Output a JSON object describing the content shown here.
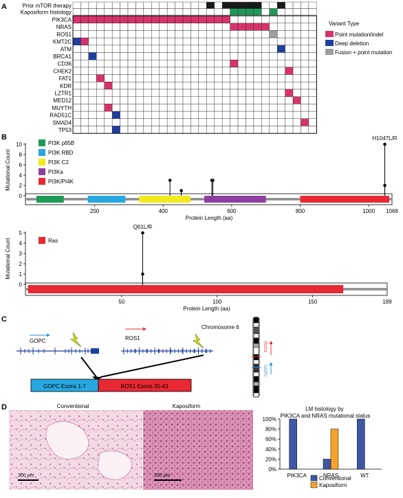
{
  "panels": {
    "a": "A",
    "b": "B",
    "c": "C",
    "d": "D"
  },
  "oncoprint": {
    "clinical_rows": [
      {
        "label": "Prior mTOR therapy",
        "color": "#1a1a1a",
        "cells": [
          17,
          19,
          20,
          21,
          22,
          23,
          26
        ]
      },
      {
        "label": "Kaposiform histology",
        "color": "#1e9a57",
        "cells": [
          20,
          21,
          22,
          23,
          25
        ]
      }
    ],
    "genes": [
      {
        "label": "PIK3CA",
        "alts": [
          [
            0,
            "p"
          ],
          [
            1,
            "p"
          ],
          [
            2,
            "p"
          ],
          [
            3,
            "p"
          ],
          [
            4,
            "p"
          ],
          [
            5,
            "p"
          ],
          [
            6,
            "p"
          ],
          [
            7,
            "p"
          ],
          [
            8,
            "p"
          ],
          [
            9,
            "p"
          ],
          [
            10,
            "p"
          ],
          [
            11,
            "p"
          ],
          [
            12,
            "p"
          ],
          [
            13,
            "p"
          ],
          [
            14,
            "p"
          ],
          [
            15,
            "p"
          ],
          [
            16,
            "p"
          ],
          [
            17,
            "p"
          ],
          [
            18,
            "p"
          ],
          [
            19,
            "p"
          ]
        ]
      },
      {
        "label": "NRAS",
        "alts": [
          [
            20,
            "p"
          ],
          [
            21,
            "p"
          ],
          [
            22,
            "p"
          ],
          [
            23,
            "p"
          ],
          [
            24,
            "p"
          ]
        ]
      },
      {
        "label": "ROS1",
        "alts": [
          [
            25,
            "f"
          ]
        ]
      },
      {
        "label": "KMT2C",
        "alts": [
          [
            0,
            "d"
          ],
          [
            1,
            "p"
          ]
        ]
      },
      {
        "label": "ATM",
        "alts": [
          [
            26,
            "d"
          ]
        ]
      },
      {
        "label": "BRCA1",
        "alts": [
          [
            2,
            "d"
          ]
        ]
      },
      {
        "label": "CD36",
        "alts": [
          [
            20,
            "p"
          ]
        ]
      },
      {
        "label": "CHEK2",
        "alts": [
          [
            27,
            "p"
          ]
        ]
      },
      {
        "label": "FAT1",
        "alts": [
          [
            3,
            "p"
          ]
        ]
      },
      {
        "label": "KDR",
        "alts": [
          [
            4,
            "p"
          ]
        ]
      },
      {
        "label": "LZTR1",
        "alts": [
          [
            27,
            "p"
          ]
        ]
      },
      {
        "label": "MED12",
        "alts": [
          [
            28,
            "p"
          ]
        ]
      },
      {
        "label": "MUYTH",
        "alts": [
          [
            4,
            "p"
          ]
        ]
      },
      {
        "label": "RAD51C",
        "alts": [
          [
            5,
            "d"
          ]
        ]
      },
      {
        "label": "SMAD4",
        "alts": [
          [
            29,
            "p"
          ]
        ]
      },
      {
        "label": "TP53",
        "alts": [
          [
            5,
            "d"
          ]
        ]
      }
    ],
    "legend_title": "Variant Type",
    "legend": [
      {
        "label": "Point mutation/indel",
        "color": "#d6336c"
      },
      {
        "label": "Deep deletion",
        "color": "#1f3f9e"
      },
      {
        "label": "Fusion + point mutation",
        "color": "#9e9e9e"
      }
    ]
  },
  "pik3ca_plot": {
    "ylabel": "Mutational Count",
    "xlabel": "Protein Length (aa)",
    "length_label": "1068",
    "yticks": [
      0,
      2,
      4,
      6,
      8,
      10
    ],
    "xticks": [
      200,
      400,
      600,
      800,
      1000
    ],
    "domains": [
      {
        "label": "PI3K p85B",
        "color": "#1e9a57",
        "start": 30,
        "end": 110
      },
      {
        "label": "PI3K RBD",
        "color": "#27a7e0",
        "start": 180,
        "end": 290
      },
      {
        "label": "PI3K C2",
        "color": "#f2ea1d",
        "start": 330,
        "end": 480
      },
      {
        "label": "PI3Ka",
        "color": "#8e3ea0",
        "start": 520,
        "end": 700
      },
      {
        "label": "PI3K/PI4K",
        "color": "#e82832",
        "start": 800,
        "end": 1060
      }
    ],
    "lollipops": [
      {
        "x": 420,
        "y": 3
      },
      {
        "x": 453,
        "y": 1
      },
      {
        "x": 542,
        "y": 3
      },
      {
        "x": 545,
        "y": 3
      },
      {
        "x": 1047,
        "y": 10,
        "label": "H1047L/R"
      },
      {
        "x": 1047,
        "y": 2
      }
    ]
  },
  "nras_plot": {
    "ylabel": "Mutational Count",
    "xlabel": "Protein Length (aa)",
    "length_label": "189",
    "yticks": [
      0,
      1,
      2,
      3,
      4,
      5
    ],
    "xticks": [
      50,
      100,
      150
    ],
    "domains": [
      {
        "label": "Ras",
        "color": "#e82832",
        "start": 1,
        "end": 166
      }
    ],
    "lollipops": [
      {
        "x": 61,
        "y": 5,
        "label": "Q61L/R"
      },
      {
        "x": 61,
        "y": 1
      }
    ]
  },
  "fusion": {
    "gene_left": "GOPC",
    "gene_right": "ROS1",
    "chromosome": "Chromosome 6",
    "exon_left": "GOPC Exons 1-7",
    "exon_right": "ROS1 Exons 35-43",
    "chrom_labels": [
      "ROS1",
      "GOPC"
    ]
  },
  "histology": {
    "left_title": "Conventional",
    "right_title": "Kaposiform",
    "left_scale": "300 µm",
    "right_scale": "200 µm"
  },
  "chart_data": {
    "type": "bar",
    "title": "LM histology by PIK3CA and NRAS mutational status",
    "categories": [
      "PIK3CA",
      "NRAS",
      "WT"
    ],
    "series": [
      {
        "name": "Conventional",
        "color": "#3d57a6",
        "values": [
          100,
          20,
          100
        ]
      },
      {
        "name": "Kaposiform",
        "color": "#f5a32a",
        "values": [
          0,
          80,
          0
        ]
      }
    ],
    "yticks": [
      "0%",
      "20%",
      "40%",
      "60%",
      "80%",
      "100%"
    ],
    "ylim": [
      0,
      100
    ]
  }
}
